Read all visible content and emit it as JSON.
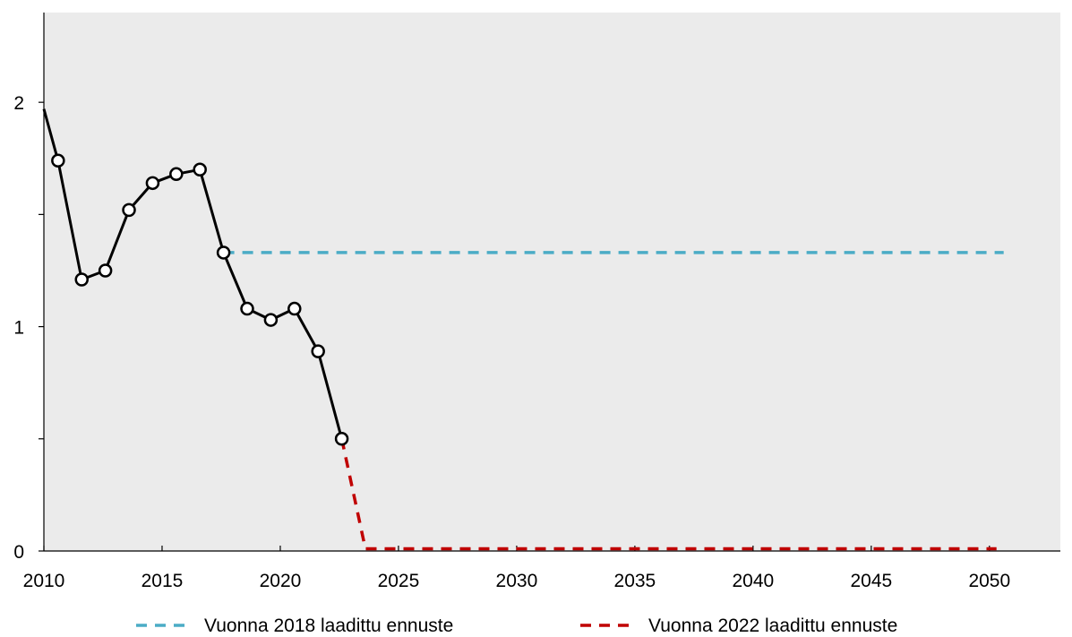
{
  "chart_data": {
    "type": "line",
    "title": "",
    "xlabel": "",
    "ylabel": "",
    "xlim": [
      2010,
      2053
    ],
    "ylim": [
      0,
      2.4
    ],
    "x_ticks": [
      2010,
      2015,
      2020,
      2025,
      2030,
      2035,
      2040,
      2045,
      2050
    ],
    "y_ticks": [
      0,
      0.5,
      1,
      1.5,
      2
    ],
    "y_tick_labels": [
      "0",
      "",
      "1",
      "",
      "2"
    ],
    "grid": false,
    "background": "#ebebeb",
    "legend_position": "bottom",
    "series": [
      {
        "key": "actual",
        "color": "#000000",
        "style": "solid",
        "markers": true,
        "x": [
          2010,
          2010.6,
          2011.6,
          2012.6,
          2013.6,
          2014.6,
          2015.6,
          2016.6,
          2017.6,
          2018.6,
          2019.6,
          2020.6,
          2021.6,
          2022.6
        ],
        "y": [
          1.97,
          1.74,
          1.21,
          1.25,
          1.52,
          1.64,
          1.68,
          1.7,
          1.33,
          1.08,
          1.03,
          1.08,
          0.89,
          0.5
        ]
      },
      {
        "name": "Vuonna 2018 laadittu ennuste",
        "color": "#4bacc6",
        "style": "dashed",
        "x": [
          2017.6,
          2050.6
        ],
        "y": [
          1.33,
          1.33
        ]
      },
      {
        "name": "Vuonna 2022 laadittu ennuste",
        "color": "#c00000",
        "style": "dashed",
        "x": [
          2022.6,
          2023.6,
          2050.3
        ],
        "y": [
          0.5,
          0.01,
          0.01
        ]
      }
    ]
  }
}
